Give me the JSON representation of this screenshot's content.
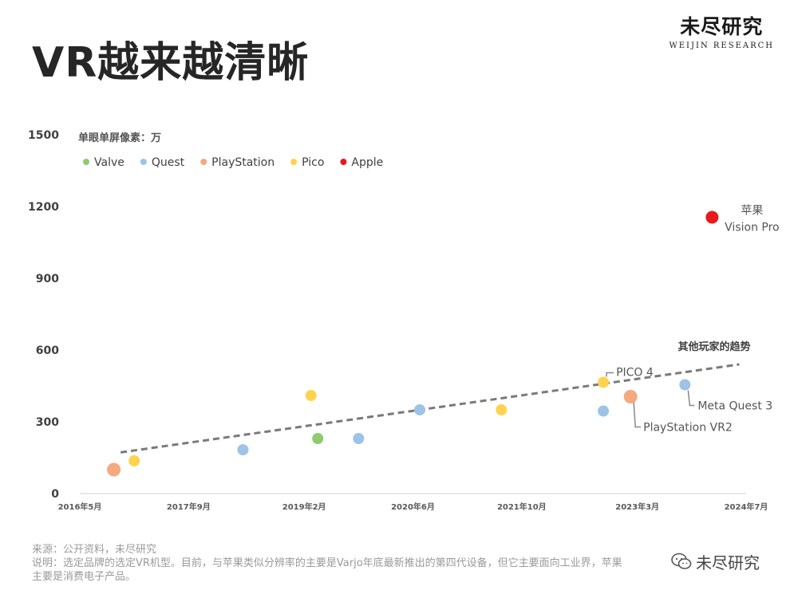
{
  "page": {
    "title": "VR越来越清晰",
    "logo": {
      "cn": "未尽研究",
      "en": "WEIJIN RESEARCH"
    },
    "footer": {
      "source": "来源：公开资料，未尽研究",
      "note_line1": "说明：选定品牌的选定VR机型。目前，与苹果类似分辨率的主要是Varjo年底最新推出的第四代设备，但它主要面向工业界，苹果",
      "note_line2": "主要是消费电子产品。"
    },
    "watermark": "未尽研究"
  },
  "chart_data": {
    "type": "scatter",
    "ylabel": "单眼单屏像素：万",
    "ylim": [
      0,
      1500
    ],
    "yticks": [
      "0",
      "300",
      "600",
      "900",
      "1200",
      "1500"
    ],
    "xlim": [
      "2016-05",
      "2024-07"
    ],
    "xticks": [
      {
        "date": "2016-05",
        "label": "2016年5月"
      },
      {
        "date": "2017-09",
        "label": "2017年9月"
      },
      {
        "date": "2019-02",
        "label": "2019年2月"
      },
      {
        "date": "2020-06",
        "label": "2020年6月"
      },
      {
        "date": "2021-10",
        "label": "2021年10月"
      },
      {
        "date": "2023-03",
        "label": "2023年3月"
      },
      {
        "date": "2024-07",
        "label": "2024年7月"
      }
    ],
    "legend_position": "top-left",
    "series": [
      {
        "name": "Valve",
        "color": "#8fca6e",
        "points": [
          {
            "x": "2019-04",
            "y": 230
          }
        ]
      },
      {
        "name": "Quest",
        "color": "#9dc3e6",
        "points": [
          {
            "x": "2018-05",
            "y": 183
          },
          {
            "x": "2019-10",
            "y": 230
          },
          {
            "x": "2020-07",
            "y": 350
          },
          {
            "x": "2022-10",
            "y": 345
          },
          {
            "x": "2023-10",
            "y": 455
          }
        ]
      },
      {
        "name": "PlayStation",
        "color": "#f4a97f",
        "points": [
          {
            "x": "2016-10",
            "y": 100
          },
          {
            "x": "2023-02",
            "y": 405
          }
        ]
      },
      {
        "name": "Pico",
        "color": "#ffd34f",
        "points": [
          {
            "x": "2017-01",
            "y": 137
          },
          {
            "x": "2019-03",
            "y": 410
          },
          {
            "x": "2021-07",
            "y": 350
          },
          {
            "x": "2022-10",
            "y": 465
          }
        ]
      },
      {
        "name": "Apple",
        "color": "#e8191a",
        "points": [
          {
            "x": "2024-02",
            "y": 1155
          }
        ]
      }
    ],
    "trendline": {
      "label": "其他玩家的趋势",
      "start": {
        "x": "2016-11",
        "y": 172
      },
      "end": {
        "x": "2024-06",
        "y": 540
      },
      "color": "#7a7a7a"
    },
    "annotations": [
      {
        "text": "PICO 4",
        "series": "Pico",
        "point_index": 3,
        "position": "above-right",
        "leader": true
      },
      {
        "text": "PlayStation VR2",
        "series": "PlayStation",
        "point_index": 1,
        "position": "below-right",
        "leader": true
      },
      {
        "text": "Meta Quest 3",
        "series": "Quest",
        "point_index": 4,
        "position": "below-right",
        "leader": true
      },
      {
        "text": "苹果",
        "series": "Apple",
        "point_index": 0,
        "position": "above-right",
        "leader": false
      },
      {
        "text": "Vision Pro",
        "series": "Apple",
        "point_index": 0,
        "position": "right",
        "leader": false
      }
    ]
  }
}
